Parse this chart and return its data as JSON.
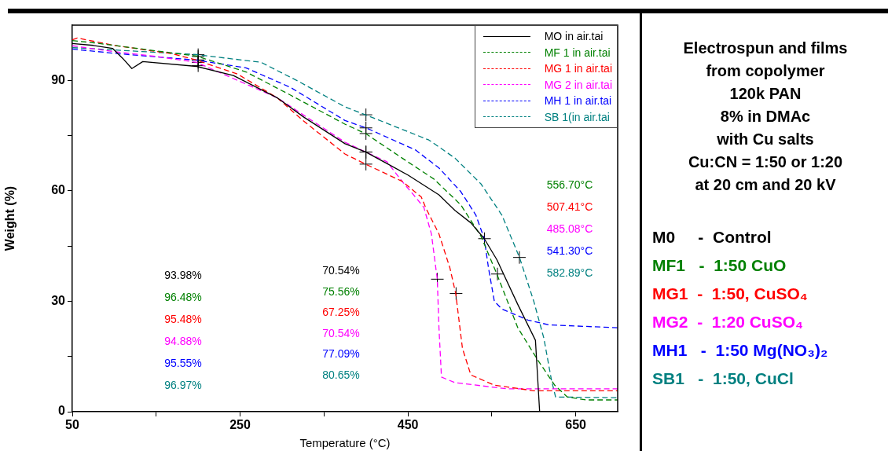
{
  "chart_data": {
    "type": "line",
    "title": "Electrospun and films\nfrom copolymer\n120k PAN\n8% in DMAc\nwith Cu salts\nCu:CN = 1:50 or 1:20\nat 20 cm and 20 kV",
    "xlabel": "Temperature (°C)",
    "ylabel": "Weight (%)",
    "xlim": [
      50,
      700
    ],
    "xticks": [
      50,
      {
        "value": 150,
        "label": null
      },
      250,
      {
        "value": 350,
        "label": null
      },
      450,
      {
        "value": 550,
        "label": null
      },
      650
    ],
    "ylim": [
      0,
      105
    ],
    "yticks": [
      0,
      {
        "value": 15,
        "label": null
      },
      30,
      {
        "value": 45,
        "label": null
      },
      60,
      {
        "value": 75,
        "label": null
      },
      90
    ],
    "grid": false,
    "legend": "top right",
    "marker": "none",
    "series": [
      {
        "name": "MO in air.tai",
        "color": "#000000",
        "line_style": "solid",
        "x": [
          50,
          75,
          98,
          110,
          121,
          134,
          198,
          242,
          294,
          326,
          375,
          400,
          425,
          450,
          487,
          506,
          525,
          541,
          556,
          581,
          602,
          607
        ],
        "values": [
          100,
          99.5,
          98.7,
          96,
          93.2,
          95.1,
          93.8,
          91.3,
          85.3,
          80,
          72.8,
          70.5,
          67.4,
          64.3,
          58.9,
          54.7,
          51.3,
          47,
          41.3,
          29.1,
          19.4,
          0
        ]
      },
      {
        "name": "MF 1 in air.tai",
        "color": "#008000",
        "line_style": "dashed",
        "x": [
          50,
          76,
          198,
          257,
          310,
          375,
          400,
          443,
          481,
          513,
          537,
          556,
          581,
          604,
          625,
          640,
          662,
          700
        ],
        "values": [
          100.8,
          100.2,
          96.6,
          92.3,
          86,
          78.1,
          75.5,
          68.9,
          63.2,
          56.2,
          47.7,
          37.4,
          22.8,
          14.3,
          7.2,
          4,
          3.2,
          3.2
        ]
      },
      {
        "name": "MG 1 in air.tai",
        "color": "#ff0000",
        "line_style": "dashed",
        "x": [
          50,
          56,
          100,
          170,
          198,
          247,
          294,
          326,
          375,
          400,
          443,
          466,
          471,
          487,
          500,
          507,
          515,
          525,
          553,
          600,
          700
        ],
        "values": [
          101,
          101.5,
          99.5,
          97.2,
          95.5,
          91.7,
          85.3,
          78.9,
          70,
          67.2,
          62.6,
          58.3,
          55.5,
          48.3,
          39.1,
          32.1,
          17.2,
          10,
          7.2,
          5.7,
          5.7
        ]
      },
      {
        "name": "MG 2 in air.tai",
        "color": "#ff00ff",
        "line_style": "dashed",
        "x": [
          50,
          100,
          150,
          198,
          294,
          375,
          400,
          425,
          443,
          459,
          469,
          478,
          485,
          487,
          490,
          506,
          569,
          700
        ],
        "values": [
          99.4,
          97.8,
          96.5,
          94.9,
          85.3,
          73.2,
          70.5,
          67.9,
          62.6,
          58.3,
          55.5,
          48.3,
          36,
          22.8,
          9.4,
          7.9,
          6.2,
          6.2
        ]
      },
      {
        "name": "MH 1 in air.tai",
        "color": "#0000ff",
        "line_style": "dashed",
        "x": [
          50,
          107,
          198,
          257,
          310,
          375,
          400,
          459,
          487,
          513,
          531,
          541,
          546,
          553,
          562,
          593,
          618,
          700
        ],
        "values": [
          98.5,
          97.2,
          95.5,
          93.4,
          88.1,
          79.1,
          77.1,
          71.1,
          66.2,
          59.8,
          53.4,
          47,
          39.1,
          30,
          27.9,
          24.9,
          23.6,
          22.8
        ]
      },
      {
        "name": "SB 1(in air.tai",
        "color": "#008080",
        "line_style": "dashed",
        "x": [
          50,
          198,
          275,
          319,
          375,
          400,
          475,
          506,
          537,
          562,
          583,
          600,
          612,
          621,
          626,
          700
        ],
        "values": [
          98.9,
          97,
          94.9,
          89.8,
          82.8,
          80.6,
          73.8,
          68.9,
          61.9,
          53.4,
          41.9,
          30,
          20,
          8.7,
          4,
          3.8
        ]
      },
      {
        "type": "scatter",
        "marker": "cross",
        "color": "#000000",
        "x": [
          200,
          200,
          200,
          200,
          200,
          200,
          400,
          400,
          400,
          400,
          400,
          400,
          556.7,
          507.41,
          485.08,
          541.3,
          582.89
        ],
        "values": [
          93.98,
          96.48,
          95.48,
          94.88,
          95.55,
          96.97,
          70.54,
          75.56,
          67.25,
          70.54,
          77.09,
          80.65,
          37.4,
          32.1,
          36,
          47,
          41.9
        ]
      }
    ],
    "annotations": [
      "93.98%",
      "96.48%",
      "95.48%",
      "94.88%",
      "95.55%",
      "96.97%",
      "70.54%",
      "75.56%",
      "67.25%",
      "70.54%",
      "77.09%",
      "80.65%",
      "556.70°C",
      "507.41°C",
      "485.08°C",
      "541.30°C",
      "582.89°C",
      "M0     -  Control",
      "MF1   -  1:50 CuO",
      "MG1  -  1:50, CuSO₄",
      "MG2  -  1:20 CuSO₄",
      "MH1   -  1:50 Mg(NO₃)₂",
      "SB1   -  1:50, CuCl"
    ]
  }
}
